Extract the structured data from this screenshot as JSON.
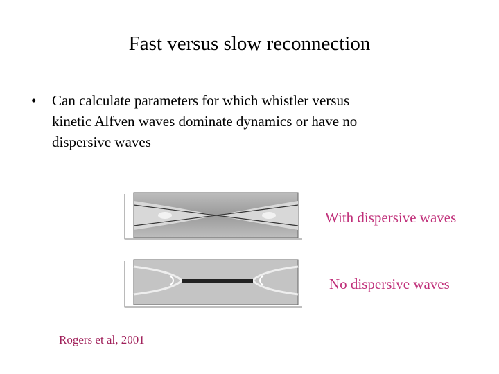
{
  "slide": {
    "title": "Fast versus slow reconnection",
    "bullet": {
      "marker": "•",
      "lines": [
        "Can calculate parameters for which whistler versus",
        "kinetic Alfven waves dominate dynamics or have no",
        "dispersive waves"
      ]
    },
    "figures": [
      {
        "label": "With dispersive waves"
      },
      {
        "label": "No dispersive waves"
      }
    ],
    "citation": "Rogers et al, 2001"
  }
}
